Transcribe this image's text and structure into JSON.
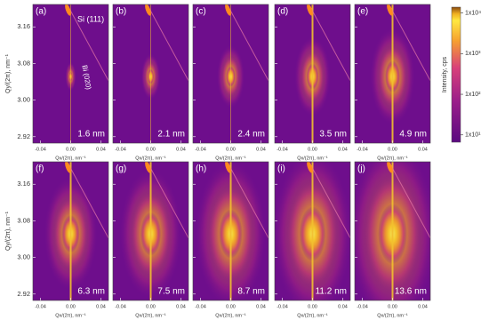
{
  "panels": [
    {
      "label": "(a)",
      "thickness": "1.6 nm"
    },
    {
      "label": "(b)",
      "thickness": "2.1 nm"
    },
    {
      "label": "(c)",
      "thickness": "2.4 nm"
    },
    {
      "label": "(d)",
      "thickness": "3.5 nm"
    },
    {
      "label": "(e)",
      "thickness": "4.9 nm"
    },
    {
      "label": "(f)",
      "thickness": "6.3 nm"
    },
    {
      "label": "(g)",
      "thickness": "7.5 nm"
    },
    {
      "label": "(h)",
      "thickness": "8.7 nm"
    },
    {
      "label": "(i)",
      "thickness": "11.2 nm"
    },
    {
      "label": "(j)",
      "thickness": "13.6 nm"
    }
  ],
  "annotations": {
    "si": "Si (111)",
    "bi": "Bi (020)"
  },
  "x_axis": {
    "label": "Qx/(2π), nm⁻¹",
    "lim": [
      -0.05,
      0.05
    ],
    "ticks": [
      -0.04,
      {
        "value": 0,
        "label": "0.00"
      },
      0.04
    ]
  },
  "y_axis": {
    "label": "Qy/(2π), nm⁻¹",
    "lim": [
      2.906,
      3.209
    ],
    "ticks": [
      3.16,
      3.08,
      {
        "value": 3,
        "label": "3.00"
      },
      2.92
    ]
  },
  "colorbar": {
    "label": "Intensity, cps",
    "log": true,
    "lim": [
      6.6,
      14000
    ],
    "ticks": [
      {
        "value": 10000,
        "label": "1x10⁴"
      },
      {
        "value": 1000,
        "label": "1x10³"
      },
      {
        "value": 100,
        "label": "1x10²"
      },
      {
        "value": 10,
        "label": "1x10¹"
      }
    ]
  }
}
